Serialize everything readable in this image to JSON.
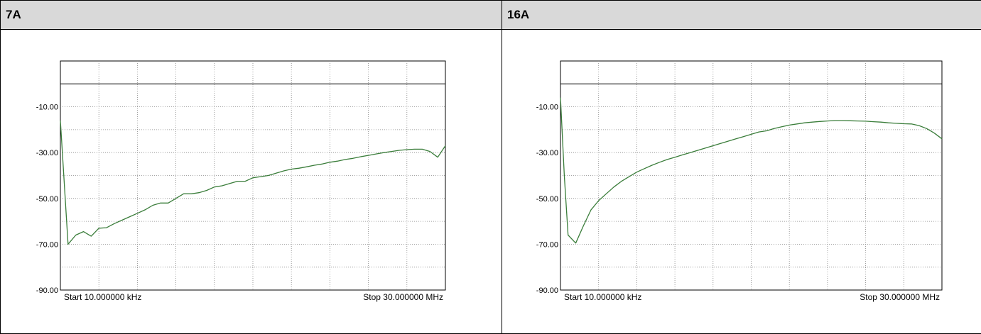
{
  "panels": [
    {
      "title": "7A"
    },
    {
      "title": "16A"
    }
  ],
  "chart_data": [
    {
      "type": "line",
      "title": "7A",
      "xlabel": "",
      "ylabel": "",
      "start_label": "Start 10.000000 kHz",
      "stop_label": "Stop 30.000000 MHz",
      "y_ticks": [
        "-10.00",
        "-30.00",
        "-50.00",
        "-70.00",
        "-90.00"
      ],
      "ylim": [
        -90,
        10
      ],
      "grid": true,
      "line_color": "#3a7d3a",
      "series": [
        {
          "x_index": [
            0,
            2,
            4,
            6,
            8,
            10,
            12,
            14,
            16,
            18,
            20,
            22,
            24,
            26,
            28,
            30,
            32,
            34,
            36,
            38,
            40,
            42,
            44,
            46,
            48,
            50,
            52,
            54,
            56,
            58,
            60,
            62,
            64,
            66,
            68,
            70,
            72,
            74,
            76,
            78,
            80,
            82,
            84,
            86,
            88,
            90,
            92,
            94,
            96,
            98,
            100
          ],
          "values": [
            -16,
            -70,
            -66,
            -64.5,
            -66.5,
            -63,
            -62.8,
            -61,
            -59.5,
            -58,
            -56.5,
            -55,
            -53,
            -52,
            -52,
            -50,
            -48,
            -48,
            -47.5,
            -46.5,
            -45,
            -44.5,
            -43.5,
            -42.5,
            -42.5,
            -41,
            -40.5,
            -40,
            -39,
            -38,
            -37.2,
            -36.8,
            -36.2,
            -35.5,
            -35,
            -34.2,
            -33.7,
            -33,
            -32.5,
            -31.8,
            -31.2,
            -30.6,
            -30,
            -29.5,
            -29,
            -28.7,
            -28.5,
            -28.5,
            -29.5,
            -32,
            -27
          ]
        }
      ]
    },
    {
      "type": "line",
      "title": "16A",
      "xlabel": "",
      "ylabel": "",
      "start_label": "Start 10.000000 kHz",
      "stop_label": "Stop 30.000000 MHz",
      "y_ticks": [
        "-10.00",
        "-30.00",
        "-50.00",
        "-70.00",
        "-90.00"
      ],
      "ylim": [
        -90,
        10
      ],
      "grid": true,
      "line_color": "#3a7d3a",
      "series": [
        {
          "x_index": [
            0,
            1,
            2,
            4,
            6,
            8,
            10,
            12,
            14,
            16,
            18,
            20,
            22,
            24,
            26,
            28,
            30,
            32,
            34,
            36,
            38,
            40,
            42,
            44,
            46,
            48,
            50,
            52,
            54,
            56,
            58,
            60,
            62,
            64,
            66,
            68,
            70,
            72,
            74,
            76,
            78,
            80,
            82,
            84,
            86,
            88,
            90,
            92,
            94,
            96,
            98,
            100
          ],
          "values": [
            -6,
            -40,
            -66,
            -69.5,
            -62,
            -55,
            -51,
            -48,
            -45,
            -42.5,
            -40.5,
            -38.5,
            -37,
            -35.5,
            -34.2,
            -33,
            -32,
            -31,
            -30,
            -29,
            -28,
            -27,
            -26,
            -25,
            -24,
            -23,
            -22,
            -21,
            -20.5,
            -19.5,
            -18.7,
            -18,
            -17.5,
            -17,
            -16.7,
            -16.4,
            -16.2,
            -16,
            -16,
            -16.1,
            -16.2,
            -16.3,
            -16.5,
            -16.7,
            -17,
            -17.2,
            -17.4,
            -17.5,
            -18.2,
            -19.5,
            -21.5,
            -24
          ]
        }
      ]
    }
  ]
}
